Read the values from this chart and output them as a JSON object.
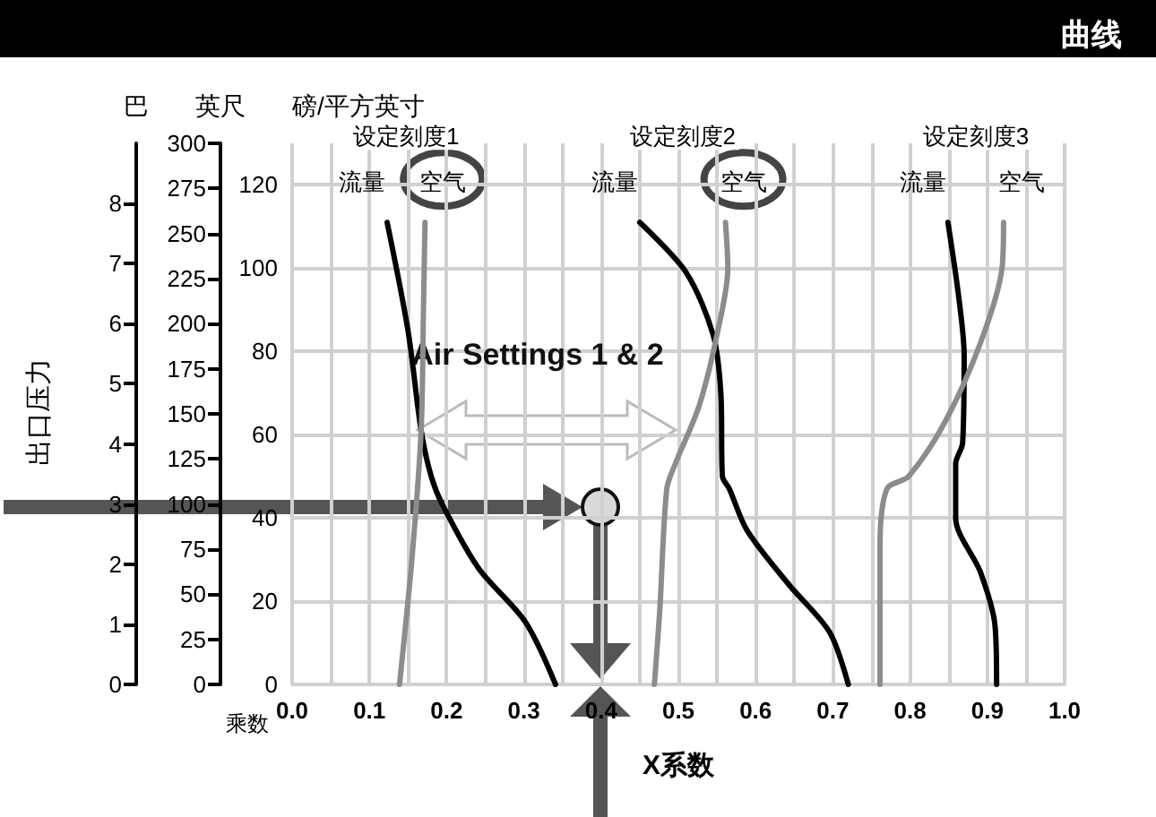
{
  "chart_data": {
    "type": "line",
    "title": "曲线",
    "xlabel": "X系数",
    "ylabel": "磅/平方英寸",
    "y2label": "英尺",
    "y3label": "巴",
    "annotations": [
      "出口压力",
      "乘数",
      "Air Settings 1 & 2",
      "设定刻度1",
      "设定刻度2",
      "设定刻度3"
    ],
    "series": [
      {
        "name": "流量",
        "color": "#000000",
        "x": [
          0.123,
          0.15,
          0.167,
          0.18,
          0.195,
          0.241,
          0.302,
          0.341
        ],
        "values": [
          111,
          85,
          61,
          50,
          43,
          28,
          15,
          0
        ]
      },
      {
        "name": "空气",
        "color": "#8c8c8c",
        "x": [
          0.172,
          0.17,
          0.167,
          0.155,
          0.139
        ],
        "values": [
          111,
          90,
          61,
          30,
          0
        ]
      },
      {
        "name": "流量",
        "color": "#000000",
        "x": [
          0.45,
          0.51,
          0.545,
          0.555,
          0.557,
          0.566,
          0.589,
          0.643,
          0.696,
          0.72
        ],
        "values": [
          111,
          99,
          84,
          70,
          50,
          47,
          37,
          24,
          12.5,
          0
        ]
      },
      {
        "name": "空气",
        "color": "#8c8c8c",
        "x": [
          0.561,
          0.564,
          0.55,
          0.527,
          0.496,
          0.485,
          0.476,
          0.469
        ],
        "values": [
          111,
          100,
          84,
          67,
          53,
          47,
          18,
          0
        ]
      },
      {
        "name": "流量",
        "color": "#000000",
        "x": [
          0.849,
          0.863,
          0.87,
          0.868,
          0.859,
          0.859,
          0.891,
          0.91,
          0.912
        ],
        "values": [
          111,
          93,
          79,
          58,
          53,
          40,
          27,
          14,
          0
        ]
      },
      {
        "name": "空气",
        "color": "#8c8c8c",
        "x": [
          0.921,
          0.919,
          0.891,
          0.845,
          0.798,
          0.77,
          0.761,
          0.761
        ],
        "values": [
          111,
          100,
          82,
          63,
          50,
          47,
          33,
          0
        ]
      }
    ],
    "xlim": [
      0,
      1
    ],
    "xticks": [
      {
        "value": 0,
        "label": "0.0"
      },
      0.1,
      0.2,
      0.3,
      0.4,
      0.5,
      0.6,
      0.7,
      0.8,
      0.9,
      {
        "value": 1,
        "label": "1.0"
      }
    ],
    "ylim": [
      0,
      130
    ],
    "yticks": [
      0,
      20,
      40,
      60,
      80,
      100,
      120
    ],
    "y2lim": [
      0,
      300
    ],
    "y2ticks": [
      0,
      25,
      50,
      75,
      100,
      125,
      150,
      175,
      200,
      225,
      250,
      275,
      300
    ],
    "y3lim": [
      0,
      9
    ],
    "y3ticks": [
      0,
      1,
      2,
      3,
      4,
      5,
      6,
      7,
      8
    ],
    "grid": true,
    "legend": false,
    "marker": "none",
    "line_style": "solid"
  }
}
